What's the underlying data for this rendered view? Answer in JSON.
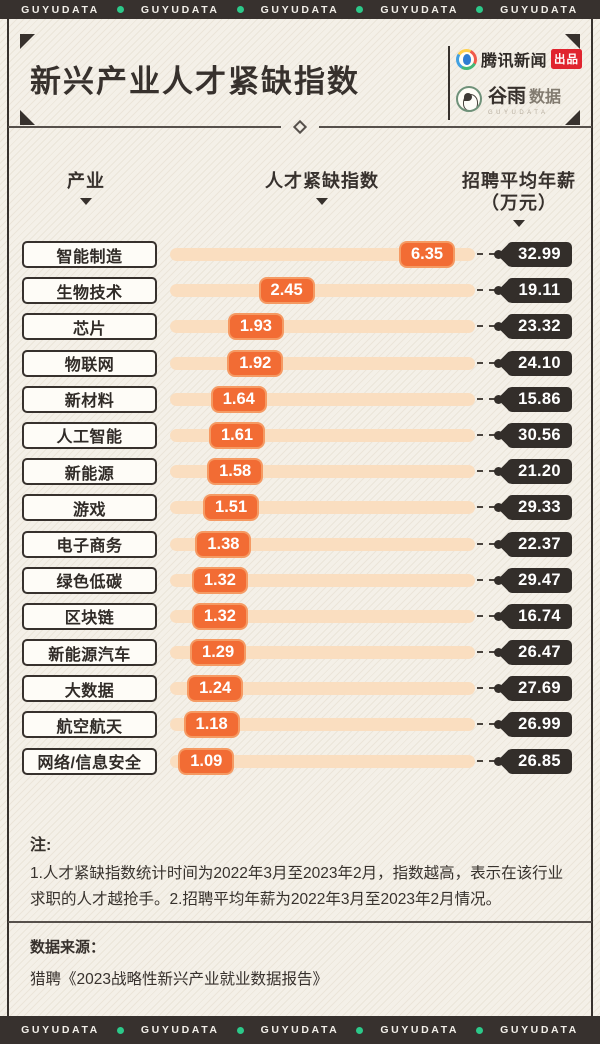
{
  "banner": {
    "text": "GUYUDATA",
    "repeat": 5
  },
  "header": {
    "title": "新兴产业人才紧缺指数",
    "tencent": {
      "name": "腾讯新闻",
      "badge": "出品"
    },
    "guyu": {
      "name_a": "谷雨",
      "name_b": "数据",
      "sub": "GUYUDATA"
    }
  },
  "table": {
    "col_industry": "产业",
    "col_index": "人才紧缺指数",
    "col_salary_line1": "招聘平均年薪",
    "col_salary_line2": "（万元）"
  },
  "chart_data": {
    "type": "bar",
    "orientation": "horizontal",
    "title": "新兴产业人才紧缺指数",
    "categories": [
      "智能制造",
      "生物技术",
      "芯片",
      "物联网",
      "新材料",
      "人工智能",
      "新能源",
      "游戏",
      "电子商务",
      "绿色低碳",
      "区块链",
      "新能源汽车",
      "大数据",
      "航空航天",
      "网络/信息安全"
    ],
    "series": [
      {
        "name": "人才紧缺指数",
        "values": [
          6.35,
          2.45,
          1.93,
          1.92,
          1.64,
          1.61,
          1.58,
          1.51,
          1.38,
          1.32,
          1.32,
          1.29,
          1.24,
          1.18,
          1.09
        ]
      },
      {
        "name": "招聘平均年薪（万元）",
        "values": [
          32.99,
          19.11,
          23.32,
          24.1,
          15.86,
          30.56,
          21.2,
          29.33,
          22.37,
          29.47,
          16.74,
          26.47,
          27.69,
          26.99,
          26.85
        ],
        "display": [
          "32.99",
          "19.11",
          "23.32",
          "24.10",
          "15.86",
          "30.56",
          "21.20",
          "29.33",
          "22.37",
          "29.47",
          "16.74",
          "26.47",
          "27.69",
          "26.99",
          "26.85"
        ]
      }
    ],
    "xlim": [
      0,
      7
    ],
    "grid": false,
    "legend_position": "none"
  },
  "notes": {
    "label": "注:",
    "text": "1.人才紧缺指数统计时间为2022年3月至2023年2月，指数越高，表示在该行业求职的人才越抢手。2.招聘平均年薪为2022年3月至2023年2月情况。"
  },
  "source": {
    "label": "数据来源：",
    "text": "猎聘《2023战略性新兴产业就业数据报告》"
  },
  "colors": {
    "accent_orange": "#f26c34",
    "bar_track": "#fadec0",
    "dark": "#37312d",
    "tag_dark": "#332e2a",
    "green_dot": "#2cc98a",
    "badge_red": "#e0242f",
    "background": "#f4f0e8"
  }
}
